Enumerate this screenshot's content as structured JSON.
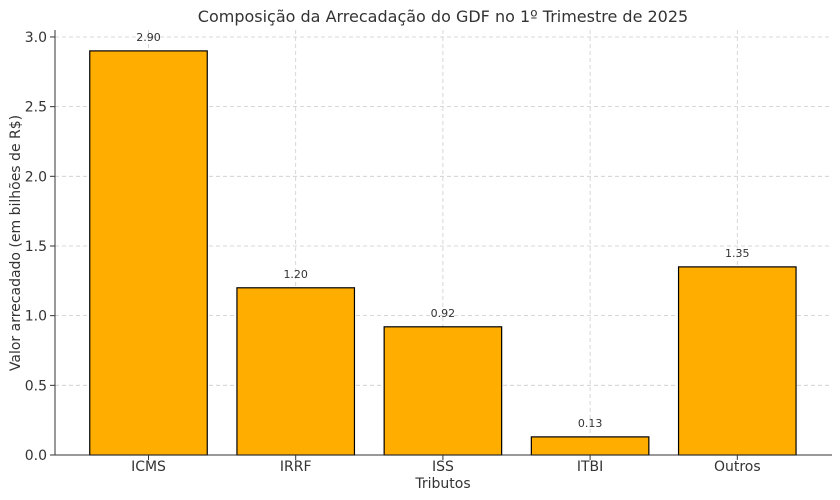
{
  "chart_data": {
    "type": "bar",
    "title": "Composição da Arrecadação do GDF no 1º Trimestre de 2025",
    "xlabel": "Tributos",
    "ylabel": "Valor arrecadado (em bilhões de R$)",
    "categories": [
      "ICMS",
      "IRRF",
      "ISS",
      "ITBI",
      "Outros"
    ],
    "values": [
      2.9,
      1.2,
      0.92,
      0.13,
      1.35
    ],
    "value_labels": [
      "2.90",
      "1.20",
      "0.92",
      "0.13",
      "1.35"
    ],
    "ylim": [
      0,
      3.05
    ],
    "yticks": [
      0.0,
      0.5,
      1.0,
      1.5,
      2.0,
      2.5,
      3.0
    ],
    "ytick_labels": [
      "0.0",
      "0.5",
      "1.0",
      "1.5",
      "2.0",
      "2.5",
      "3.0"
    ],
    "grid": true,
    "bar_color": "#FFAE00",
    "edge_color": "#000000"
  }
}
